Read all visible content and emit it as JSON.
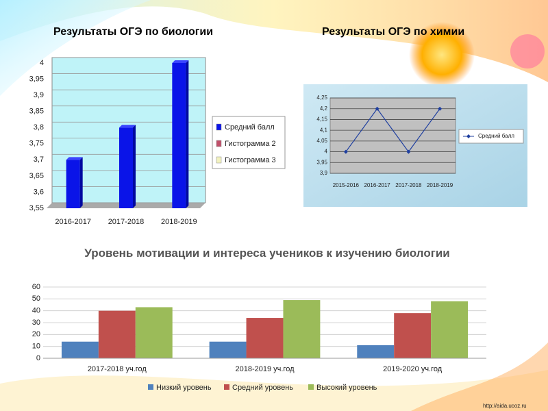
{
  "chart_data": [
    {
      "type": "bar",
      "three_d": true,
      "title": "Результаты ОГЭ по биологии",
      "categories": [
        "2016-2017",
        "2017-2018",
        "2018-2019"
      ],
      "series": [
        {
          "name": "Средний балл",
          "color": "#0a14e8",
          "values": [
            3.7,
            3.8,
            4
          ]
        },
        {
          "name": "Гистограмма 2",
          "color": "#c0506a",
          "values": [
            null,
            null,
            null
          ]
        },
        {
          "name": "Гистограмма 3",
          "color": "#f2f2c0",
          "values": [
            null,
            null,
            null
          ]
        }
      ],
      "ylim": [
        3.55,
        4
      ],
      "yticks": [
        {
          "value": 3.55,
          "label": "3,55"
        },
        {
          "value": 3.6,
          "label": "3,6"
        },
        {
          "value": 3.65,
          "label": "3,65"
        },
        {
          "value": 3.7,
          "label": "3,7"
        },
        {
          "value": 3.75,
          "label": "3,75"
        },
        {
          "value": 3.8,
          "label": "3,8"
        },
        {
          "value": 3.85,
          "label": "3,85"
        },
        {
          "value": 3.9,
          "label": "3,9"
        },
        {
          "value": 3.95,
          "label": "3,95"
        },
        4
      ],
      "grid": true,
      "legend": "right"
    },
    {
      "type": "line",
      "title": "Результаты ОГЭ по химии",
      "categories": [
        "2015-2016",
        "2016-2017",
        "2017-2018",
        "2018-2019"
      ],
      "series": [
        {
          "name": "Средний балл",
          "color": "#1f3f9f",
          "values": [
            4,
            4.2,
            4,
            4.2
          ]
        }
      ],
      "ylim": [
        3.9,
        4.25
      ],
      "yticks": [
        {
          "value": 3.9,
          "label": "3,9"
        },
        {
          "value": 3.95,
          "label": "3,95"
        },
        4,
        {
          "value": 4.05,
          "label": "4,05"
        },
        {
          "value": 4.1,
          "label": "4,1"
        },
        {
          "value": 4.15,
          "label": "4,15"
        },
        {
          "value": 4.2,
          "label": "4,2"
        },
        {
          "value": 4.25,
          "label": "4,25"
        }
      ],
      "grid": true,
      "legend": "right"
    },
    {
      "type": "bar",
      "three_d": false,
      "title": "Уровень мотивации и интереса учеников к изучению биологии",
      "categories": [
        "2017-2018 уч.год",
        "2018-2019 уч.год",
        "2019-2020 уч.год"
      ],
      "series": [
        {
          "name": "Низкий уровень",
          "color": "#4f81bd",
          "values": [
            14,
            14,
            11
          ]
        },
        {
          "name": "Средний уровень",
          "color": "#c0504d",
          "values": [
            40,
            34,
            38
          ]
        },
        {
          "name": "Высокий уровень",
          "color": "#9bbb59",
          "values": [
            43,
            49,
            48
          ]
        }
      ],
      "ylim": [
        0,
        60
      ],
      "yticks": [
        0,
        10,
        20,
        30,
        40,
        50,
        60
      ],
      "grid": true,
      "legend": "bottom"
    }
  ],
  "watermark": "http://aida.ucoz.ru"
}
